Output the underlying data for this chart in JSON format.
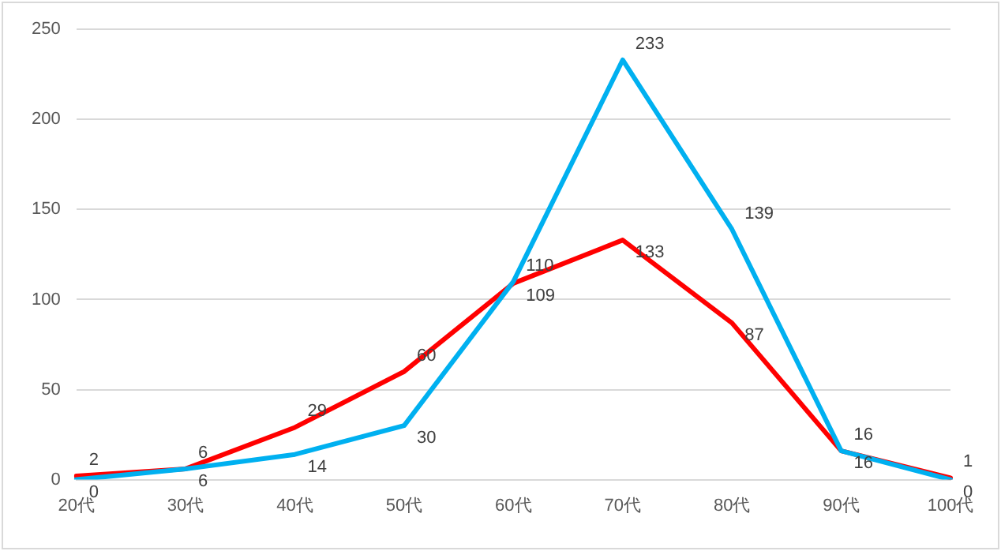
{
  "chart_data": {
    "type": "line",
    "categories": [
      "20代",
      "30代",
      "40代",
      "50代",
      "60代",
      "70代",
      "80代",
      "90代",
      "100代"
    ],
    "series": [
      {
        "color": "#00b0f0",
        "values": [
          0,
          6,
          14,
          30,
          110,
          233,
          139,
          16,
          0
        ]
      },
      {
        "color": "#ff0000",
        "values": [
          2,
          6,
          29,
          60,
          109,
          133,
          87,
          16,
          1
        ]
      }
    ],
    "ylim": [
      0,
      250
    ],
    "yticks": [
      0,
      50,
      100,
      150,
      200,
      250
    ],
    "grid": "y",
    "data_labels": true,
    "marker": "none",
    "line_style": "solid"
  }
}
